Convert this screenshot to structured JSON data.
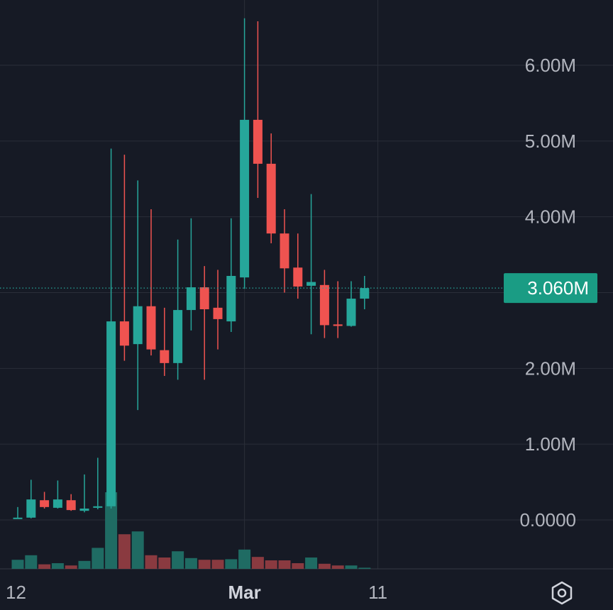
{
  "colors": {
    "background": "#161a25",
    "grid": "#2a2e39",
    "up": "#26a69a",
    "down": "#ef5350",
    "up_volume": "#1f6b63",
    "down_volume": "#8a3a40",
    "axis_text": "#b2b5be",
    "last_price_label": "#1a9c84"
  },
  "chart_data": {
    "type": "candlestick",
    "y_axis": {
      "ticks": [
        "6.00M",
        "5.00M",
        "4.00M",
        "2.00M",
        "1.00M",
        "0.0000"
      ],
      "ylim": [
        -650000,
        6900000
      ],
      "unit": "M"
    },
    "x_axis": {
      "ticks": [
        {
          "label": "12",
          "bar_index": -1,
          "bold": false
        },
        {
          "label": "Mar",
          "bar_index": 17,
          "bold": true
        },
        {
          "label": "11",
          "bar_index": 27,
          "bold": false
        }
      ]
    },
    "grid": true,
    "last_price": {
      "value": 3060000,
      "label": "3.060M"
    },
    "candles": [
      {
        "o": 0.02,
        "h": 0.17,
        "l": 0.02,
        "c": 0.03,
        "dir": "up"
      },
      {
        "o": 0.03,
        "h": 0.53,
        "l": 0.02,
        "c": 0.27,
        "dir": "up"
      },
      {
        "o": 0.26,
        "h": 0.37,
        "l": 0.15,
        "c": 0.17,
        "dir": "down"
      },
      {
        "o": 0.16,
        "h": 0.52,
        "l": 0.15,
        "c": 0.27,
        "dir": "up"
      },
      {
        "o": 0.26,
        "h": 0.34,
        "l": 0.12,
        "c": 0.13,
        "dir": "down"
      },
      {
        "o": 0.12,
        "h": 0.6,
        "l": 0.1,
        "c": 0.15,
        "dir": "up"
      },
      {
        "o": 0.16,
        "h": 0.82,
        "l": 0.14,
        "c": 0.18,
        "dir": "up"
      },
      {
        "o": 0.18,
        "h": 4.9,
        "l": 0.15,
        "c": 2.62,
        "dir": "up"
      },
      {
        "o": 2.62,
        "h": 4.82,
        "l": 2.1,
        "c": 2.3,
        "dir": "down"
      },
      {
        "o": 2.32,
        "h": 4.48,
        "l": 1.45,
        "c": 2.82,
        "dir": "up"
      },
      {
        "o": 2.82,
        "h": 4.1,
        "l": 2.17,
        "c": 2.25,
        "dir": "down"
      },
      {
        "o": 2.24,
        "h": 2.8,
        "l": 1.9,
        "c": 2.07,
        "dir": "down"
      },
      {
        "o": 2.07,
        "h": 3.7,
        "l": 1.85,
        "c": 2.77,
        "dir": "up"
      },
      {
        "o": 2.77,
        "h": 3.98,
        "l": 2.5,
        "c": 3.07,
        "dir": "up"
      },
      {
        "o": 3.07,
        "h": 3.35,
        "l": 1.85,
        "c": 2.78,
        "dir": "down"
      },
      {
        "o": 2.8,
        "h": 3.3,
        "l": 2.25,
        "c": 2.65,
        "dir": "down"
      },
      {
        "o": 2.62,
        "h": 3.98,
        "l": 2.48,
        "c": 3.22,
        "dir": "up"
      },
      {
        "o": 3.2,
        "h": 6.62,
        "l": 3.05,
        "c": 5.28,
        "dir": "up"
      },
      {
        "o": 5.28,
        "h": 6.58,
        "l": 4.25,
        "c": 4.7,
        "dir": "down"
      },
      {
        "o": 4.7,
        "h": 5.1,
        "l": 3.65,
        "c": 3.78,
        "dir": "down"
      },
      {
        "o": 3.78,
        "h": 4.1,
        "l": 3.0,
        "c": 3.32,
        "dir": "down"
      },
      {
        "o": 3.33,
        "h": 3.78,
        "l": 2.92,
        "c": 3.08,
        "dir": "down"
      },
      {
        "o": 3.09,
        "h": 4.3,
        "l": 2.45,
        "c": 3.14,
        "dir": "up"
      },
      {
        "o": 3.1,
        "h": 3.3,
        "l": 2.4,
        "c": 2.57,
        "dir": "down"
      },
      {
        "o": 2.58,
        "h": 3.15,
        "l": 2.4,
        "c": 2.56,
        "dir": "down"
      },
      {
        "o": 2.56,
        "h": 3.15,
        "l": 2.55,
        "c": 2.92,
        "dir": "up"
      },
      {
        "o": 2.92,
        "h": 3.22,
        "l": 2.78,
        "c": 3.06,
        "dir": "up"
      }
    ],
    "volume": [
      0.16,
      0.24,
      0.08,
      0.1,
      0.06,
      0.14,
      0.37,
      1.35,
      0.61,
      0.66,
      0.24,
      0.2,
      0.31,
      0.19,
      0.16,
      0.16,
      0.17,
      0.34,
      0.21,
      0.15,
      0.15,
      0.1,
      0.2,
      0.09,
      0.06,
      0.06,
      0.02
    ]
  }
}
